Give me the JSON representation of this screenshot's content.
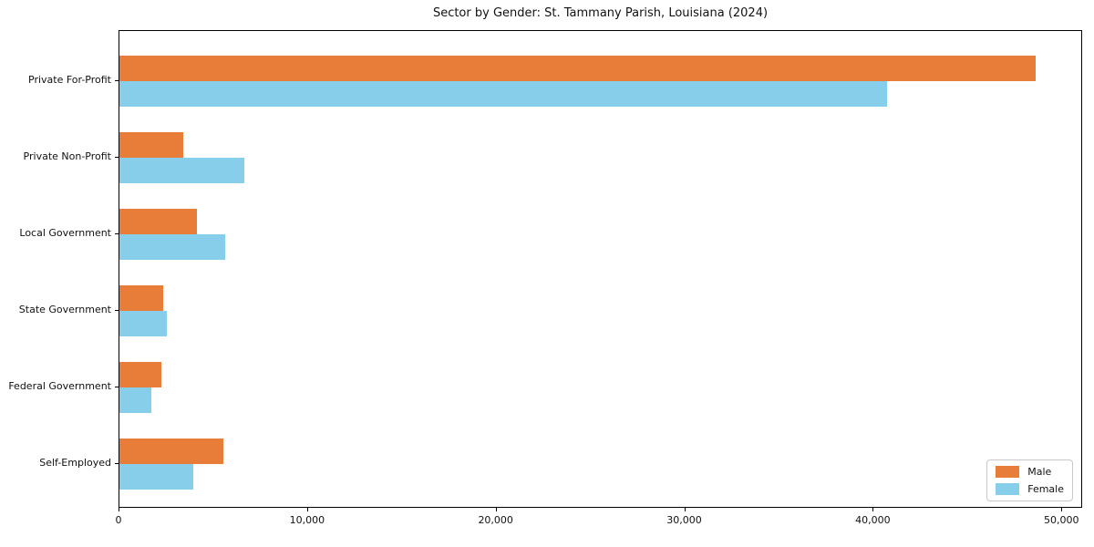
{
  "chart_data": {
    "type": "bar",
    "orientation": "horizontal",
    "title": "Sector by Gender: St. Tammany Parish, Louisiana (2024)",
    "categories": [
      "Private For-Profit",
      "Private Non-Profit",
      "Local Government",
      "State Government",
      "Federal Government",
      "Self-Employed"
    ],
    "series": [
      {
        "name": "Male",
        "color": "#e87d3a",
        "values": [
          48600,
          3400,
          4100,
          2300,
          2200,
          5500
        ]
      },
      {
        "name": "Female",
        "color": "#87ceeb",
        "values": [
          40700,
          6600,
          5600,
          2500,
          1700,
          3900
        ]
      }
    ],
    "xlabel": "",
    "ylabel": "",
    "xlim": [
      0,
      51100
    ],
    "xticks": [
      0,
      10000,
      20000,
      30000,
      40000,
      50000
    ],
    "xtick_labels": [
      "0",
      "10,000",
      "20,000",
      "30,000",
      "40,000",
      "50,000"
    ],
    "grid": false,
    "legend": {
      "position": "lower right",
      "entries": [
        "Male",
        "Female"
      ]
    },
    "colors": {
      "background": "#ffffff",
      "spine": "#000000",
      "text": "#111111"
    }
  }
}
